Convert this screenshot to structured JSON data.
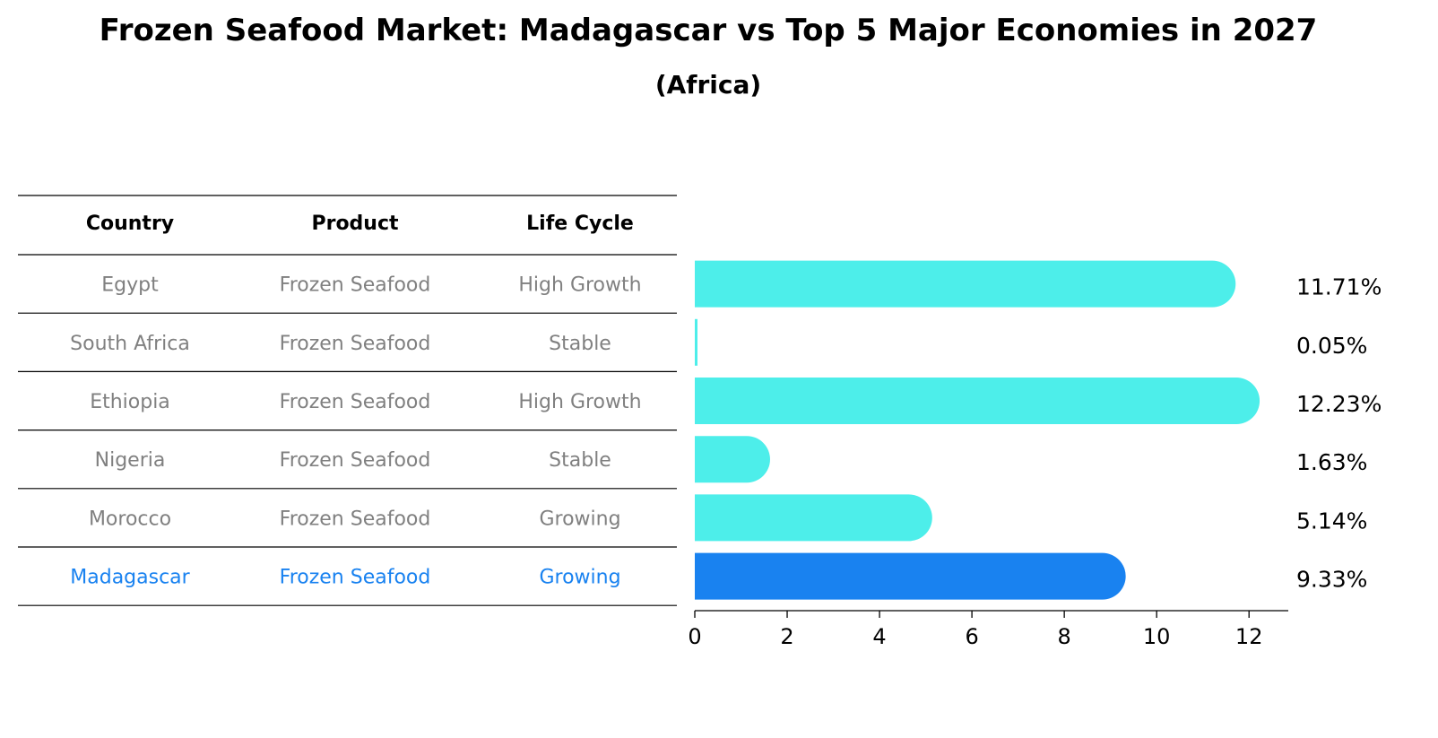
{
  "title": "Frozen Seafood Market: Madagascar vs Top 5 Major Economies in 2027",
  "subtitle": "(Africa)",
  "colors": {
    "bar": "#4DEEEA",
    "highlight": "#1982F0",
    "table_text": "#808080",
    "rule": "#000000"
  },
  "table": {
    "headers": [
      "Country",
      "Product",
      "Life Cycle"
    ],
    "rows": [
      [
        "Egypt",
        "Frozen Seafood",
        "High Growth"
      ],
      [
        "South Africa",
        "Frozen Seafood",
        "Stable"
      ],
      [
        "Ethiopia",
        "Frozen Seafood",
        "High Growth"
      ],
      [
        "Nigeria",
        "Frozen Seafood",
        "Stable"
      ],
      [
        "Morocco",
        "Frozen Seafood",
        "Growing"
      ],
      [
        "Madagascar",
        "Frozen Seafood",
        "Growing"
      ]
    ],
    "highlight_row": 5
  },
  "chart_data": {
    "type": "bar",
    "orientation": "horizontal",
    "categories": [
      "Egypt",
      "South Africa",
      "Ethiopia",
      "Nigeria",
      "Morocco",
      "Madagascar"
    ],
    "values": [
      11.71,
      0.05,
      12.23,
      1.63,
      5.14,
      9.33
    ],
    "value_labels": [
      "11.71%",
      "0.05%",
      "12.23%",
      "1.63%",
      "5.14%",
      "9.33%"
    ],
    "xticks": [
      "0",
      "2",
      "4",
      "6",
      "8",
      "10",
      "12"
    ],
    "xlim": [
      0,
      12.85
    ],
    "highlight": "Madagascar",
    "xlabel": "",
    "ylabel": ""
  }
}
